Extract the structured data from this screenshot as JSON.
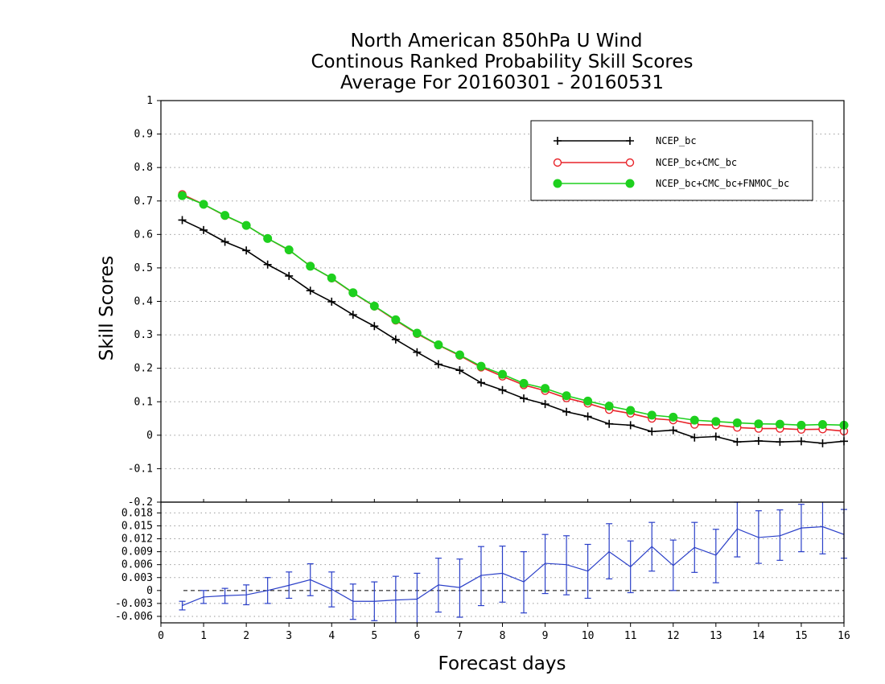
{
  "chart_data": [
    {
      "type": "line",
      "title": [
        "North American 850hPa U Wind",
        "Continous Ranked Probability Skill Scores",
        "Average For 20160301 - 20160531"
      ],
      "ylabel": "Skill Scores",
      "xlabel": "Forecast days",
      "xlim": [
        0,
        16
      ],
      "ylim": [
        -0.2,
        1
      ],
      "x_ticks": [
        "0",
        "1",
        "2",
        "3",
        "4",
        "5",
        "6",
        "7",
        "8",
        "9",
        "10",
        "11",
        "12",
        "13",
        "14",
        "15",
        "16"
      ],
      "y_ticks": [
        "-0.2",
        "-0.1",
        "0",
        "0.1",
        "0.2",
        "0.3",
        "0.4",
        "0.5",
        "0.6",
        "0.7",
        "0.8",
        "0.9",
        "1"
      ],
      "grid": true,
      "legend_position": "top-right",
      "x": [
        0.5,
        1,
        1.5,
        2,
        2.5,
        3,
        3.5,
        4,
        4.5,
        5,
        5.5,
        6,
        6.5,
        7,
        7.5,
        8,
        8.5,
        9,
        9.5,
        10,
        10.5,
        11,
        11.5,
        12,
        12.5,
        13,
        13.5,
        14,
        14.5,
        15,
        15.5,
        16
      ],
      "series": [
        {
          "name": "NCEP_bc",
          "color": "#000000",
          "marker": "plus",
          "values": [
            0.643,
            0.613,
            0.578,
            0.552,
            0.51,
            0.476,
            0.432,
            0.399,
            0.36,
            0.326,
            0.286,
            0.248,
            0.212,
            0.194,
            0.157,
            0.135,
            0.11,
            0.093,
            0.07,
            0.056,
            0.034,
            0.03,
            0.011,
            0.015,
            -0.007,
            -0.004,
            -0.02,
            -0.017,
            -0.02,
            -0.018,
            -0.024,
            -0.018
          ]
        },
        {
          "name": "NCEP_bc+CMC_bc",
          "color": "#e8242a",
          "marker": "open-circle",
          "values": [
            0.72,
            0.69,
            0.656,
            0.627,
            0.588,
            0.553,
            0.506,
            0.469,
            0.425,
            0.385,
            0.343,
            0.303,
            0.269,
            0.238,
            0.203,
            0.176,
            0.15,
            0.133,
            0.111,
            0.095,
            0.076,
            0.065,
            0.05,
            0.045,
            0.032,
            0.03,
            0.023,
            0.02,
            0.02,
            0.017,
            0.018,
            0.012
          ]
        },
        {
          "name": "NCEP_bc+CMC_bc+FNMOC_bc",
          "color": "#1ed01e",
          "marker": "filled-circle",
          "values": [
            0.716,
            0.69,
            0.657,
            0.627,
            0.588,
            0.554,
            0.505,
            0.47,
            0.426,
            0.386,
            0.345,
            0.305,
            0.27,
            0.24,
            0.206,
            0.182,
            0.155,
            0.14,
            0.118,
            0.102,
            0.087,
            0.074,
            0.06,
            0.054,
            0.045,
            0.041,
            0.037,
            0.034,
            0.033,
            0.03,
            0.032,
            0.03
          ]
        }
      ]
    },
    {
      "type": "line",
      "xlabel": "Forecast days",
      "xlim": [
        0,
        16
      ],
      "ylim": [
        -0.0075,
        0.0205
      ],
      "y_ticks": [
        "-0.006",
        "-0.003",
        "0",
        "0.003",
        "0.006",
        "0.009",
        "0.012",
        "0.015",
        "0.018"
      ],
      "grid": true,
      "reference_line": 0,
      "color": "#2a3fc8",
      "x": [
        0.5,
        1,
        1.5,
        2,
        2.5,
        3,
        3.5,
        4,
        4.5,
        5,
        5.5,
        6,
        6.5,
        7,
        7.5,
        8,
        8.5,
        9,
        9.5,
        10,
        10.5,
        11,
        11.5,
        12,
        12.5,
        13,
        13.5,
        14,
        14.5,
        15,
        15.5,
        16
      ],
      "values": [
        -0.0035,
        -0.0015,
        -0.0012,
        -0.001,
        0.0,
        0.0012,
        0.0025,
        0.0003,
        -0.0025,
        -0.0025,
        -0.0022,
        -0.002,
        0.0013,
        0.0007,
        0.0035,
        0.004,
        0.002,
        0.0063,
        0.006,
        0.0045,
        0.009,
        0.0055,
        0.0102,
        0.0058,
        0.01,
        0.0082,
        0.0143,
        0.0123,
        0.0127,
        0.0145,
        0.0148,
        0.013
      ],
      "error_low": [
        -0.0045,
        -0.003,
        -0.003,
        -0.0033,
        -0.003,
        -0.0018,
        -0.0012,
        -0.0038,
        -0.0067,
        -0.007,
        -0.0078,
        -0.0078,
        -0.005,
        -0.0062,
        -0.0035,
        -0.0027,
        -0.0052,
        -0.0007,
        -0.001,
        -0.0018,
        0.0027,
        -0.0005,
        0.0045,
        0.0,
        0.0042,
        0.0018,
        0.0078,
        0.0063,
        0.007,
        0.009,
        0.0085,
        0.0075
      ],
      "error_high": [
        -0.0025,
        0.0,
        0.0005,
        0.0013,
        0.003,
        0.0043,
        0.0062,
        0.0043,
        0.0015,
        0.002,
        0.0033,
        0.004,
        0.0075,
        0.0073,
        0.0102,
        0.0103,
        0.009,
        0.013,
        0.0127,
        0.0107,
        0.0155,
        0.0115,
        0.0158,
        0.0117,
        0.0158,
        0.0142,
        0.0205,
        0.0185,
        0.0187,
        0.02,
        0.021,
        0.0188
      ]
    }
  ]
}
